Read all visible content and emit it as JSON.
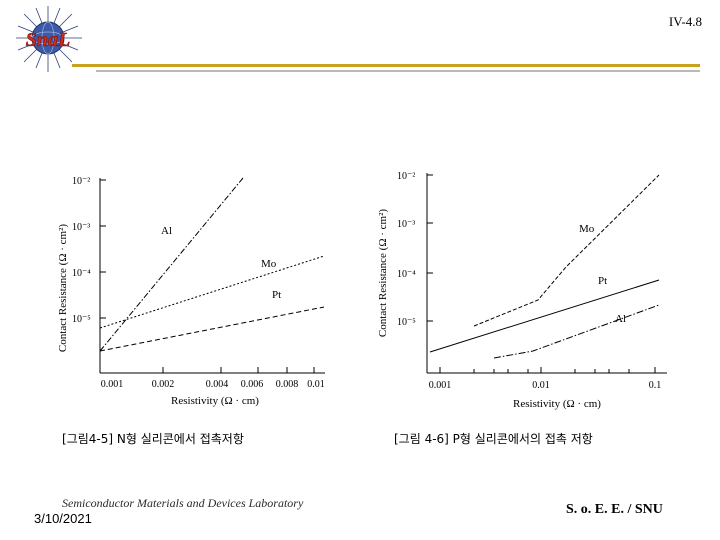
{
  "logo": {
    "text": "SnaL",
    "icon": "sun-globe-logo"
  },
  "slide_number": "IV-4.8",
  "charts": {
    "left": {
      "ylabel": "Contact Resistance (Ω · cm²)",
      "xlabel": "Resistivity (Ω · cm)",
      "yticks": [
        "10⁻²",
        "10⁻³",
        "10⁻⁴",
        "10⁻⁵"
      ],
      "xticks": [
        "0.001",
        "0.002",
        "0.004",
        "0.006",
        "0.008",
        "0.01"
      ],
      "curve_labels": [
        "Al",
        "Mo",
        "Pt"
      ],
      "caption": "[그림4-5] N형 실리콘에서 접촉저항"
    },
    "right": {
      "ylabel": "Contact Resistance (Ω · cm²)",
      "xlabel": "Resistivity (Ω · cm)",
      "yticks": [
        "10⁻²",
        "10⁻³",
        "10⁻⁴",
        "10⁻⁵"
      ],
      "xticks": [
        "0.001",
        "0.01",
        "0.1"
      ],
      "curve_labels": [
        "Mo",
        "Pt",
        "Al"
      ],
      "caption": "[그림 4-6] P형 실리콘에서의 접촉 저항"
    }
  },
  "chart_data": [
    {
      "type": "line",
      "xlabel": "Resistivity (Ω · cm)",
      "ylabel": "Contact Resistance (Ω · cm²)",
      "x_scale": "log",
      "y_scale": "log",
      "xlim": [
        0.001,
        0.01
      ],
      "ylim": [
        3e-06,
        0.01
      ],
      "series": [
        {
          "name": "Al",
          "style": "dash-dot",
          "x": [
            0.001,
            0.0047
          ],
          "y": [
            5e-06,
            0.01
          ]
        },
        {
          "name": "Mo",
          "style": "dotted",
          "x": [
            0.001,
            0.01
          ],
          "y": [
            8e-06,
            0.00015
          ]
        },
        {
          "name": "Pt",
          "style": "dashed",
          "x": [
            0.001,
            0.01
          ],
          "y": [
            5e-06,
            2.2e-05
          ]
        }
      ]
    },
    {
      "type": "line",
      "xlabel": "Resistivity (Ω · cm)",
      "ylabel": "Contact Resistance (Ω · cm²)",
      "x_scale": "log",
      "y_scale": "log",
      "xlim": [
        0.0007,
        0.13
      ],
      "ylim": [
        2.5e-06,
        0.01
      ],
      "series": [
        {
          "name": "Mo",
          "style": "dashed",
          "x": [
            0.003,
            0.008,
            0.1
          ],
          "y": [
            8e-06,
            1.8e-05,
            0.01
          ]
        },
        {
          "name": "Pt",
          "style": "solid",
          "x": [
            0.001,
            0.1
          ],
          "y": [
            5.5e-06,
            8e-05
          ]
        },
        {
          "name": "Al",
          "style": "dash-dot",
          "x": [
            0.003,
            0.01,
            0.1
          ],
          "y": [
            3.4e-06,
            4.5e-06,
            4.3e-05
          ]
        }
      ]
    }
  ],
  "footer": {
    "lab": "Semiconductor Materials and Devices Laboratory",
    "date": "3/10/2021",
    "school": "S. o. E. E. / SNU"
  }
}
